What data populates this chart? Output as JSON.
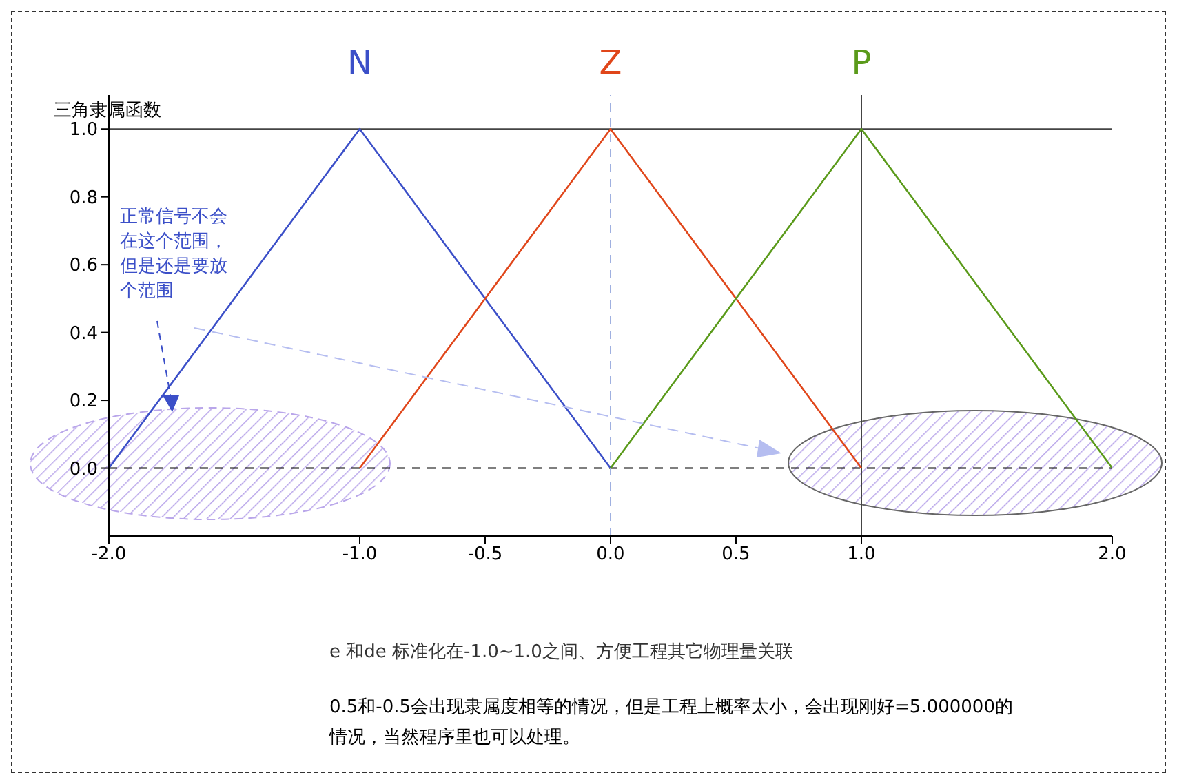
{
  "chart_data": {
    "type": "line",
    "title": "三角隶属函数",
    "series": [
      {
        "name": "N",
        "color": "#3b4fc8",
        "x": [
          -2,
          -1,
          0
        ],
        "values": [
          0,
          1,
          0
        ]
      },
      {
        "name": "Z",
        "color": "#e0461a",
        "x": [
          -1,
          0,
          1
        ],
        "values": [
          0,
          1,
          0
        ]
      },
      {
        "name": "P",
        "color": "#5a9a1a",
        "x": [
          0,
          1,
          2
        ],
        "values": [
          0,
          1,
          0
        ]
      }
    ],
    "xlim": [
      -2,
      2
    ],
    "xticks": [
      {
        "value": -2,
        "label": "-2.0"
      },
      {
        "value": -1,
        "label": "-1.0"
      },
      -0.5,
      {
        "value": 0,
        "label": "0.0"
      },
      0.5,
      {
        "value": 1,
        "label": "1.0"
      },
      {
        "value": 2,
        "label": "2.0"
      }
    ],
    "ylim": [
      -0.2,
      1.1
    ],
    "yticks": [
      {
        "value": 0,
        "label": "0.0"
      },
      0.2,
      0.4,
      0.6,
      0.8,
      {
        "value": 1,
        "label": "1.0"
      }
    ],
    "ref_lines": [
      {
        "axis": "y",
        "value": 0,
        "color": "#000000",
        "line_style": "dashed"
      },
      {
        "axis": "y",
        "value": 1,
        "color": "#444444",
        "line_style": "solid"
      },
      {
        "axis": "x",
        "value": 0,
        "color": "#9fb0e0",
        "line_style": "dashed"
      },
      {
        "axis": "x",
        "value": 1,
        "color": "#444444",
        "line_style": "solid"
      }
    ],
    "annotations": [
      "正常信号不会在这个范围，但是还是要放个范围",
      "e 和de 标准化在-1.0~1.0之间、方便工程其它物理量关联",
      "0.5和-0.5会出现隶属度相等的情况，但是工程上概率太小，会出现刚好=5.000000的情况，当然程序里也可以处理。"
    ],
    "grid": false,
    "legend": false,
    "marker": "none",
    "line_style": "solid"
  }
}
